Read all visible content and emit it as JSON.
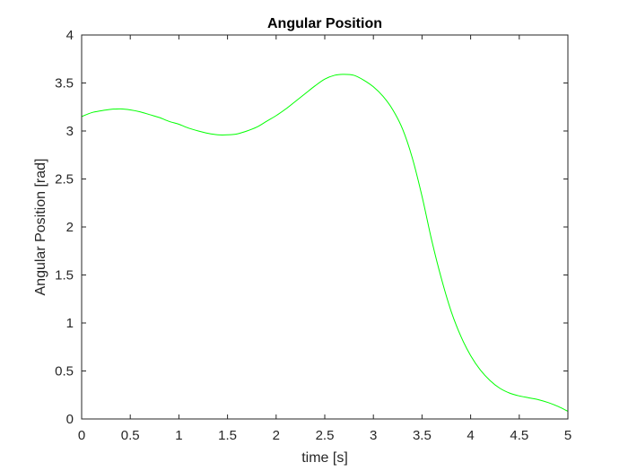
{
  "chart_data": {
    "type": "line",
    "title": "Angular Position",
    "xlabel": "time [s]",
    "ylabel": "Angular Position [rad]",
    "xlim": [
      0,
      5
    ],
    "ylim": [
      0,
      4
    ],
    "xticks": [
      0,
      0.5,
      1,
      1.5,
      2,
      2.5,
      3,
      3.5,
      4,
      4.5,
      5
    ],
    "yticks": [
      0,
      0.5,
      1,
      1.5,
      2,
      2.5,
      3,
      3.5,
      4
    ],
    "xtick_labels": [
      "0",
      "0.5",
      "1",
      "1.5",
      "2",
      "2.5",
      "3",
      "3.5",
      "4",
      "4.5",
      "5"
    ],
    "ytick_labels": [
      "0",
      "0.5",
      "1",
      "1.5",
      "2",
      "2.5",
      "3",
      "3.5",
      "4"
    ],
    "grid": false,
    "series": [
      {
        "color": "#00ff00",
        "style": "solid",
        "x": [
          0,
          0.1,
          0.2,
          0.3,
          0.4,
          0.5,
          0.6,
          0.7,
          0.8,
          0.9,
          1.0,
          1.1,
          1.2,
          1.3,
          1.4,
          1.5,
          1.6,
          1.7,
          1.8,
          1.9,
          2.0,
          2.1,
          2.2,
          2.3,
          2.4,
          2.5,
          2.6,
          2.7,
          2.8,
          2.9,
          3.0,
          3.1,
          3.2,
          3.3,
          3.4,
          3.5,
          3.6,
          3.7,
          3.8,
          3.9,
          4.0,
          4.1,
          4.2,
          4.3,
          4.4,
          4.5,
          4.6,
          4.7,
          4.8,
          4.9,
          5.0
        ],
        "y": [
          3.15,
          3.19,
          3.21,
          3.225,
          3.23,
          3.22,
          3.2,
          3.17,
          3.14,
          3.1,
          3.07,
          3.03,
          3.0,
          2.975,
          2.96,
          2.96,
          2.97,
          3.0,
          3.04,
          3.1,
          3.16,
          3.23,
          3.31,
          3.39,
          3.47,
          3.54,
          3.58,
          3.59,
          3.58,
          3.53,
          3.46,
          3.36,
          3.22,
          3.02,
          2.72,
          2.32,
          1.86,
          1.46,
          1.12,
          0.86,
          0.66,
          0.51,
          0.4,
          0.32,
          0.27,
          0.24,
          0.22,
          0.2,
          0.17,
          0.13,
          0.08
        ]
      },
      {
        "color": "#ff0000",
        "style": "dashed",
        "x": [
          0,
          5
        ],
        "y": [
          0,
          0
        ]
      }
    ]
  }
}
